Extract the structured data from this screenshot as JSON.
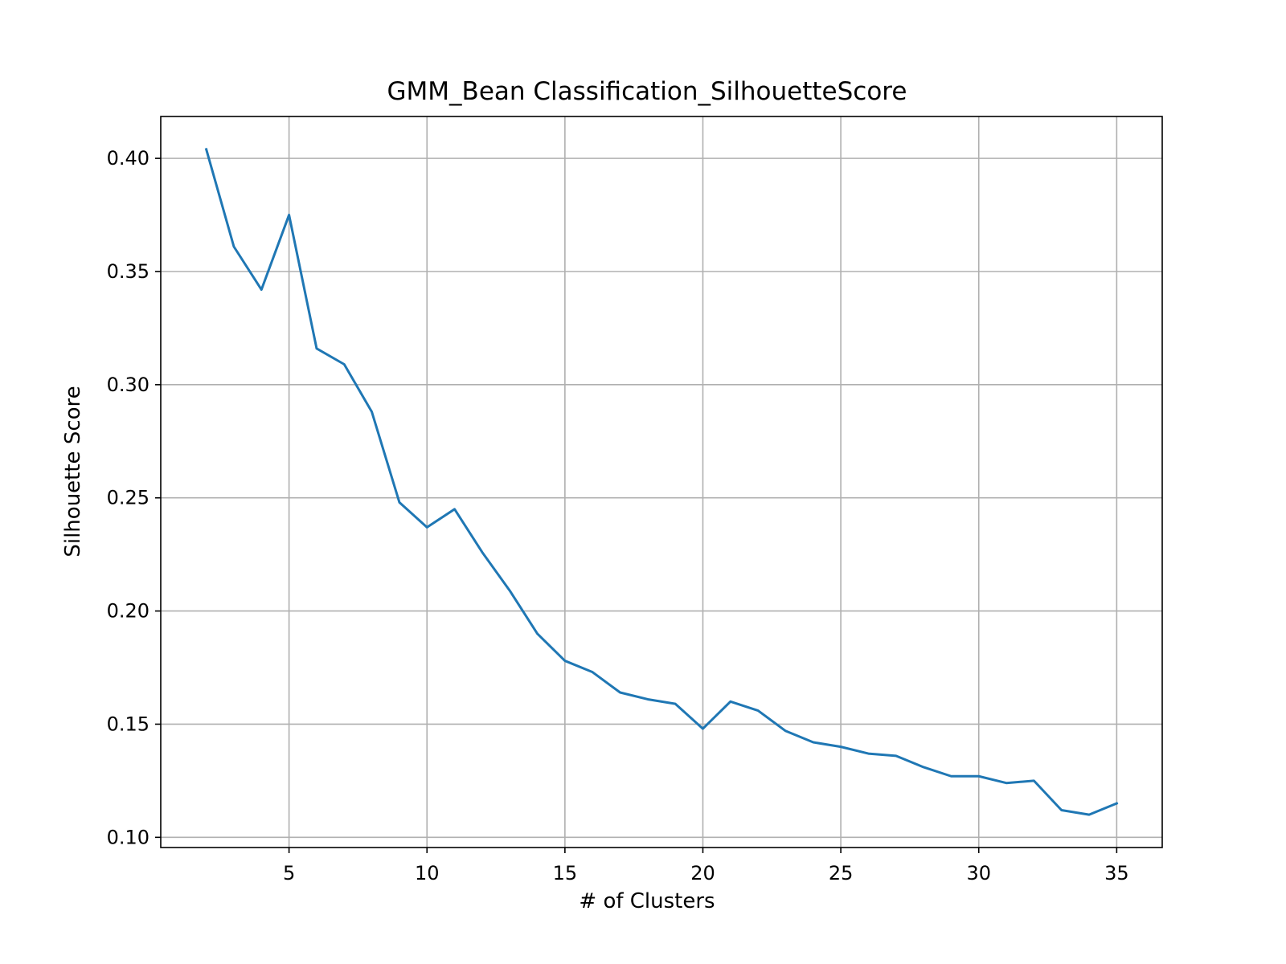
{
  "chart_data": {
    "type": "line",
    "title": "GMM_Bean Classification_SilhouetteScore",
    "xlabel": "# of Clusters",
    "ylabel": "Silhouette Score",
    "xlim": [
      0.35,
      36.65
    ],
    "ylim": [
      0.0955,
      0.4185
    ],
    "xticks": [
      5,
      10,
      15,
      20,
      25,
      30,
      35
    ],
    "yticks": [
      0.1,
      0.15,
      0.2,
      0.25,
      0.3,
      0.35,
      0.4
    ],
    "xtick_labels": [
      "5",
      "10",
      "15",
      "20",
      "25",
      "30",
      "35"
    ],
    "ytick_labels": [
      "0.10",
      "0.15",
      "0.20",
      "0.25",
      "0.30",
      "0.35",
      "0.40"
    ],
    "grid": true,
    "line_color": "#1f77b4",
    "x": [
      2,
      3,
      4,
      5,
      6,
      7,
      8,
      9,
      10,
      11,
      12,
      13,
      14,
      15,
      16,
      17,
      18,
      19,
      20,
      21,
      22,
      23,
      24,
      25,
      26,
      27,
      28,
      29,
      30,
      31,
      32,
      33,
      34,
      35
    ],
    "series": [
      {
        "values": [
          0.404,
          0.361,
          0.342,
          0.375,
          0.316,
          0.309,
          0.288,
          0.248,
          0.237,
          0.245,
          0.226,
          0.209,
          0.19,
          0.178,
          0.173,
          0.164,
          0.161,
          0.159,
          0.148,
          0.16,
          0.156,
          0.147,
          0.142,
          0.14,
          0.137,
          0.136,
          0.131,
          0.127,
          0.127,
          0.124,
          0.125,
          0.112,
          0.11,
          0.115
        ]
      }
    ]
  }
}
